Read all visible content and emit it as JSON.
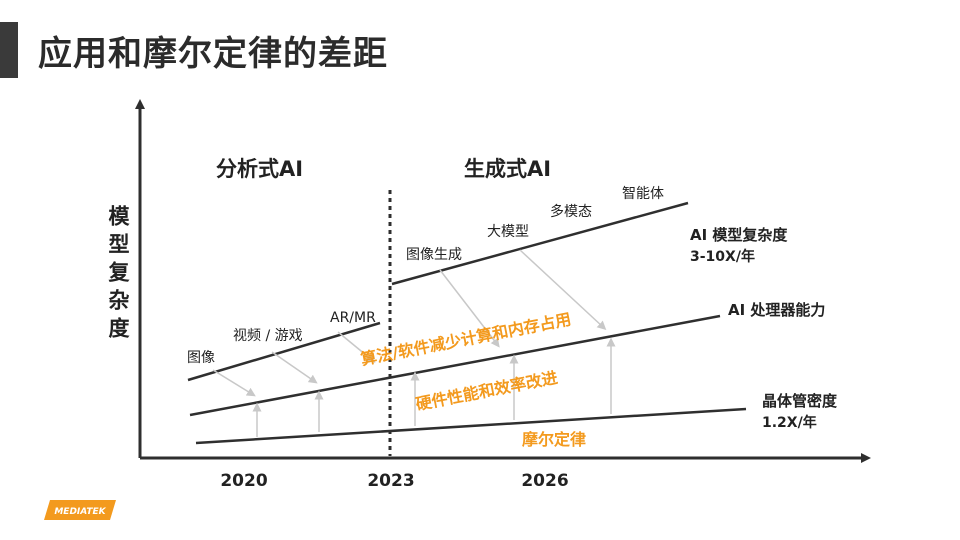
{
  "slide": {
    "title": "应用和摩尔定律的差距"
  },
  "diagram": {
    "y_axis_label": "模型复杂度",
    "era_left": "分析式AI",
    "era_right": "生成式AI",
    "years": [
      "2020",
      "2023",
      "2026"
    ],
    "app_labels": {
      "tuxiang": "图像",
      "shipin_youxi": "视频 / 游戏",
      "ar_mr": "AR/MR",
      "tuxiang_shengcheng": "图像生成",
      "damoxing": "大模型",
      "duomotai": "多模态",
      "zhinengti": "智能体"
    },
    "line_labels": {
      "model_complexity": "AI 模型复杂度",
      "model_complexity_rate": "3-10X/年",
      "processor": "AI 处理器能力",
      "transistor": "晶体管密度",
      "transistor_rate": "1.2X/年"
    },
    "orange_labels": {
      "algorithm": "算法/软件减少计算和内存占用",
      "hardware": "硬件性能和效率改进",
      "moore": "摩尔定律"
    },
    "colors": {
      "line": "#2f2f2f",
      "orange": "#f39a1e",
      "gray_arrow": "#c8c8c8",
      "text": "#222222"
    }
  },
  "logo": {
    "text": "MEDIATEK",
    "color": "#f39a1e"
  }
}
